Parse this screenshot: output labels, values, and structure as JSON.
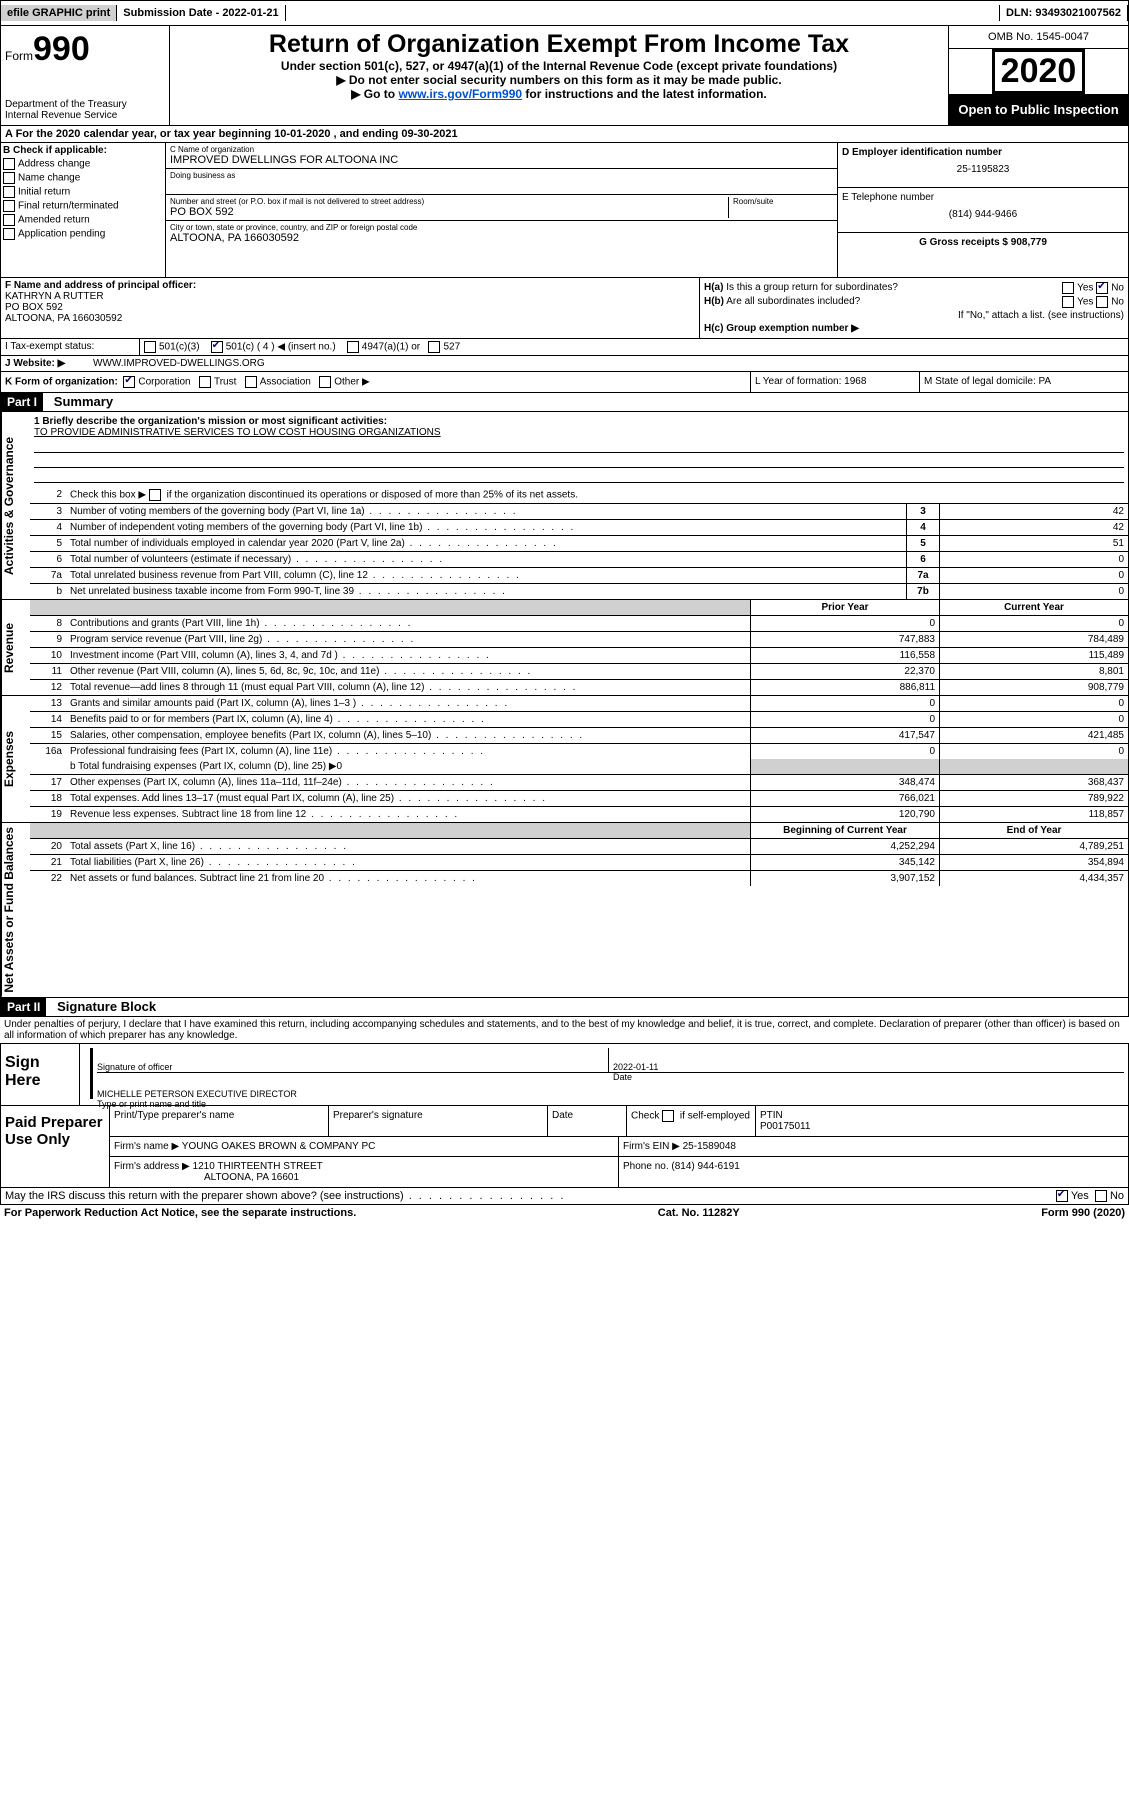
{
  "topbar": {
    "efile": "efile GRAPHIC print",
    "submission": "Submission Date - 2022-01-21",
    "dln": "DLN: 93493021007562"
  },
  "header": {
    "form_label": "Form",
    "form_number": "990",
    "dept1": "Department of the Treasury",
    "dept2": "Internal Revenue Service",
    "title": "Return of Organization Exempt From Income Tax",
    "subtitle": "Under section 501(c), 527, or 4947(a)(1) of the Internal Revenue Code (except private foundations)",
    "inst1": "▶ Do not enter social security numbers on this form as it may be made public.",
    "inst2_pre": "▶ Go to ",
    "inst2_link": "www.irs.gov/Form990",
    "inst2_post": " for instructions and the latest information.",
    "omb": "OMB No. 1545-0047",
    "year": "2020",
    "open": "Open to Public Inspection"
  },
  "lineA": "A For the 2020 calendar year, or tax year beginning 10-01-2020   , and ending 09-30-2021",
  "sectionB": {
    "label": "B Check if applicable:",
    "items": [
      "Address change",
      "Name change",
      "Initial return",
      "Final return/terminated",
      "Amended return",
      "Application pending"
    ]
  },
  "sectionC": {
    "name_lbl": "C Name of organization",
    "name": "IMPROVED DWELLINGS FOR ALTOONA INC",
    "dba_lbl": "Doing business as",
    "addr_lbl": "Number and street (or P.O. box if mail is not delivered to street address)",
    "addr": "PO BOX 592",
    "room_lbl": "Room/suite",
    "city_lbl": "City or town, state or province, country, and ZIP or foreign postal code",
    "city": "ALTOONA, PA  166030592"
  },
  "sectionD": {
    "ein_lbl": "D Employer identification number",
    "ein": "25-1195823"
  },
  "sectionE": {
    "tel_lbl": "E Telephone number",
    "tel": "(814) 944-9466"
  },
  "sectionG": {
    "lbl": "G Gross receipts $ 908,779"
  },
  "sectionF": {
    "lbl": "F  Name and address of principal officer:",
    "line1": "KATHRYN A RUTTER",
    "line2": "PO BOX 592",
    "line3": "ALTOONA, PA  166030592"
  },
  "sectionH": {
    "ha": "H(a)  Is this a group return for subordinates?",
    "ha_yes": "Yes",
    "ha_no": "No",
    "hb": "H(b)  Are all subordinates included?",
    "hb_yes": "Yes",
    "hb_no": "No",
    "hb_note": "If \"No,\" attach a list. (see instructions)",
    "hc": "H(c)  Group exemption number ▶"
  },
  "sectionI": {
    "lbl": "I   Tax-exempt status:",
    "o1": "501(c)(3)",
    "o2": "501(c) ( 4 ) ◀ (insert no.)",
    "o3": "4947(a)(1) or",
    "o4": "527"
  },
  "sectionJ": {
    "lbl": "J   Website: ▶",
    "val": "  WWW.IMPROVED-DWELLINGS.ORG"
  },
  "sectionK": {
    "lbl": "K Form of organization:",
    "o1": "Corporation",
    "o2": "Trust",
    "o3": "Association",
    "o4": "Other ▶"
  },
  "sectionL": "L Year of formation: 1968",
  "sectionM": "M State of legal domicile: PA",
  "part1": {
    "tag": "Part I",
    "title": "Summary"
  },
  "side": {
    "ag": "Activities & Governance",
    "rev": "Revenue",
    "exp": "Expenses",
    "net": "Net Assets or Fund Balances"
  },
  "summary": {
    "l1_lbl": "1  Briefly describe the organization's mission or most significant activities:",
    "l1_val": "TO PROVIDE ADMINISTRATIVE SERVICES TO LOW COST HOUSING ORGANIZATIONS",
    "l2": "Check this box ▶      if the organization discontinued its operations or disposed of more than 25% of its net assets.",
    "rows_ag": [
      {
        "n": "3",
        "d": "Number of voting members of the governing body (Part VI, line 1a)",
        "l": "3",
        "v": "42"
      },
      {
        "n": "4",
        "d": "Number of independent voting members of the governing body (Part VI, line 1b)",
        "l": "4",
        "v": "42"
      },
      {
        "n": "5",
        "d": "Total number of individuals employed in calendar year 2020 (Part V, line 2a)",
        "l": "5",
        "v": "51"
      },
      {
        "n": "6",
        "d": "Total number of volunteers (estimate if necessary)",
        "l": "6",
        "v": "0"
      },
      {
        "n": "7a",
        "d": "Total unrelated business revenue from Part VIII, column (C), line 12",
        "l": "7a",
        "v": "0"
      },
      {
        "n": " b",
        "d": "Net unrelated business taxable income from Form 990-T, line 39",
        "l": "7b",
        "v": "0"
      }
    ],
    "hdr_prior": "Prior Year",
    "hdr_curr": "Current Year",
    "rows_rev": [
      {
        "n": "8",
        "d": "Contributions and grants (Part VIII, line 1h)",
        "p": "0",
        "c": "0"
      },
      {
        "n": "9",
        "d": "Program service revenue (Part VIII, line 2g)",
        "p": "747,883",
        "c": "784,489"
      },
      {
        "n": "10",
        "d": "Investment income (Part VIII, column (A), lines 3, 4, and 7d )",
        "p": "116,558",
        "c": "115,489"
      },
      {
        "n": "11",
        "d": "Other revenue (Part VIII, column (A), lines 5, 6d, 8c, 9c, 10c, and 11e)",
        "p": "22,370",
        "c": "8,801"
      },
      {
        "n": "12",
        "d": "Total revenue—add lines 8 through 11 (must equal Part VIII, column (A), line 12)",
        "p": "886,811",
        "c": "908,779"
      }
    ],
    "rows_exp": [
      {
        "n": "13",
        "d": "Grants and similar amounts paid (Part IX, column (A), lines 1–3 )",
        "p": "0",
        "c": "0"
      },
      {
        "n": "14",
        "d": "Benefits paid to or for members (Part IX, column (A), line 4)",
        "p": "0",
        "c": "0"
      },
      {
        "n": "15",
        "d": "Salaries, other compensation, employee benefits (Part IX, column (A), lines 5–10)",
        "p": "417,547",
        "c": "421,485"
      },
      {
        "n": "16a",
        "d": "Professional fundraising fees (Part IX, column (A), line 11e)",
        "p": "0",
        "c": "0"
      }
    ],
    "l16b": "b  Total fundraising expenses (Part IX, column (D), line 25) ▶0",
    "rows_exp2": [
      {
        "n": "17",
        "d": "Other expenses (Part IX, column (A), lines 11a–11d, 11f–24e)",
        "p": "348,474",
        "c": "368,437"
      },
      {
        "n": "18",
        "d": "Total expenses. Add lines 13–17 (must equal Part IX, column (A), line 25)",
        "p": "766,021",
        "c": "789,922"
      },
      {
        "n": "19",
        "d": "Revenue less expenses. Subtract line 18 from line 12",
        "p": "120,790",
        "c": "118,857"
      }
    ],
    "hdr_beg": "Beginning of Current Year",
    "hdr_end": "End of Year",
    "rows_net": [
      {
        "n": "20",
        "d": "Total assets (Part X, line 16)",
        "p": "4,252,294",
        "c": "4,789,251"
      },
      {
        "n": "21",
        "d": "Total liabilities (Part X, line 26)",
        "p": "345,142",
        "c": "354,894"
      },
      {
        "n": "22",
        "d": "Net assets or fund balances. Subtract line 21 from line 20",
        "p": "3,907,152",
        "c": "4,434,357"
      }
    ]
  },
  "part2": {
    "tag": "Part II",
    "title": "Signature Block"
  },
  "perjury": "Under penalties of perjury, I declare that I have examined this return, including accompanying schedules and statements, and to the best of my knowledge and belief, it is true, correct, and complete. Declaration of preparer (other than officer) is based on all information of which preparer has any knowledge.",
  "sign": {
    "lab": "Sign Here",
    "sig_lbl": "Signature of officer",
    "date": "2022-01-11",
    "date_lbl": "Date",
    "name": "MICHELLE PETERSON  EXECUTIVE DIRECTOR",
    "name_lbl": "Type or print name and title"
  },
  "prep": {
    "lab": "Paid Preparer Use Only",
    "h1": "Print/Type preparer's name",
    "h2": "Preparer's signature",
    "h3": "Date",
    "h4_1": "Check",
    "h4_2": "if self-employed",
    "h5": "PTIN",
    "ptin": "P00175011",
    "firm_lbl": "Firm's name    ▶",
    "firm": "YOUNG OAKES BROWN & COMPANY PC",
    "ein_lbl": "Firm's EIN ▶",
    "ein": "25-1589048",
    "addr_lbl": "Firm's address ▶",
    "addr1": "1210 THIRTEENTH STREET",
    "addr2": "ALTOONA, PA  16601",
    "ph_lbl": "Phone no.",
    "ph": "(814) 944-6191"
  },
  "discuss": {
    "q": "May the IRS discuss this return with the preparer shown above? (see instructions)",
    "yes": "Yes",
    "no": "No"
  },
  "footer": {
    "pra": "For Paperwork Reduction Act Notice, see the separate instructions.",
    "cat": "Cat. No. 11282Y",
    "form": "Form 990 (2020)"
  }
}
